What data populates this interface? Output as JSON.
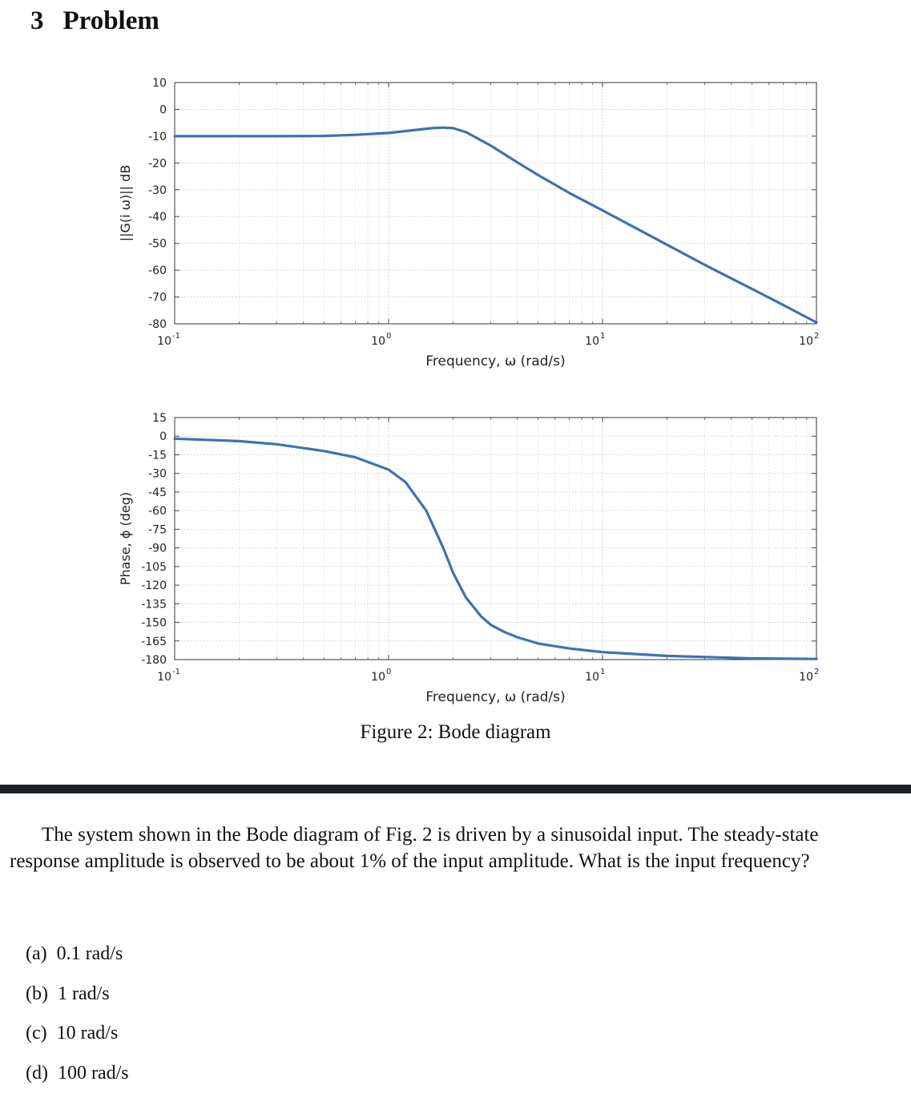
{
  "section": {
    "number": "3",
    "title": "Problem"
  },
  "figure_caption": "Figure 2: Bode diagram",
  "question": "The system shown in the Bode diagram of Fig. 2 is driven by a sinusoidal input. The steady-state response amplitude is observed to be about 1% of the input amplitude. What is the input frequency?",
  "options": [
    {
      "label": "(a)",
      "text": "0.1 rad/s"
    },
    {
      "label": "(b)",
      "text": "1 rad/s"
    },
    {
      "label": "(c)",
      "text": "10 rad/s"
    },
    {
      "label": "(d)",
      "text": "100 rad/s"
    }
  ],
  "chart_data": [
    {
      "type": "line",
      "title": "",
      "xlabel": "Frequency,  ω (rad/s)",
      "ylabel": "||G(i ω)|| dB",
      "xscale": "log",
      "xlim": [
        0.1,
        100
      ],
      "ylim": [
        -80,
        10
      ],
      "grid": true,
      "line_color": "#3a74b0",
      "x_tick_bases": [
        "10",
        "10",
        "10",
        "10"
      ],
      "x_tick_exponents": [
        "-1",
        "0",
        "1",
        "2"
      ],
      "x_tick_values": [
        0.1,
        1,
        10,
        100
      ],
      "y_ticks": [
        "10",
        "0",
        "-10",
        "-20",
        "-30",
        "-40",
        "-50",
        "-60",
        "-70",
        "-80"
      ],
      "y_tick_values": [
        10,
        0,
        -10,
        -20,
        -30,
        -40,
        -50,
        -60,
        -70,
        -80
      ],
      "series": [
        {
          "x": [
            0.1,
            0.2,
            0.3,
            0.5,
            0.7,
            1.0,
            1.3,
            1.6,
            1.8,
            2.0,
            2.3,
            3.0,
            4.0,
            5.0,
            7.0,
            10,
            20,
            30,
            50,
            70,
            100
          ],
          "y": [
            -10.0,
            -10.0,
            -10.0,
            -9.9,
            -9.5,
            -8.8,
            -7.8,
            -7.0,
            -6.8,
            -7.0,
            -8.5,
            -13.5,
            -19.8,
            -24.5,
            -31.2,
            -37.7,
            -50.5,
            -58.0,
            -67.0,
            -73.0,
            -79.5
          ]
        }
      ]
    },
    {
      "type": "line",
      "title": "",
      "xlabel": "Frequency,  ω (rad/s)",
      "ylabel": "Phase,  ϕ (deg)",
      "xscale": "log",
      "xlim": [
        0.1,
        100
      ],
      "ylim": [
        -180,
        15
      ],
      "grid": true,
      "line_color": "#3a74b0",
      "x_tick_bases": [
        "10",
        "10",
        "10",
        "10"
      ],
      "x_tick_exponents": [
        "-1",
        "0",
        "1",
        "2"
      ],
      "x_tick_values": [
        0.1,
        1,
        10,
        100
      ],
      "y_ticks": [
        "15",
        "0",
        "-15",
        "-30",
        "-45",
        "-60",
        "-75",
        "-90",
        "-105",
        "-120",
        "-135",
        "-150",
        "-165",
        "-180"
      ],
      "y_tick_values": [
        15,
        0,
        -15,
        -30,
        -45,
        -60,
        -75,
        -90,
        -105,
        -120,
        -135,
        -150,
        -165,
        -180
      ],
      "series": [
        {
          "x": [
            0.1,
            0.2,
            0.3,
            0.5,
            0.7,
            1.0,
            1.2,
            1.5,
            1.8,
            2.0,
            2.3,
            2.7,
            3.0,
            3.5,
            4.0,
            5.0,
            7.0,
            10,
            20,
            50,
            100
          ],
          "y": [
            -2,
            -4,
            -6.5,
            -12,
            -17,
            -27,
            -37,
            -60,
            -90,
            -110,
            -130,
            -145,
            -152,
            -158,
            -162,
            -167,
            -171,
            -174,
            -177,
            -179,
            -179.5
          ]
        }
      ]
    }
  ]
}
